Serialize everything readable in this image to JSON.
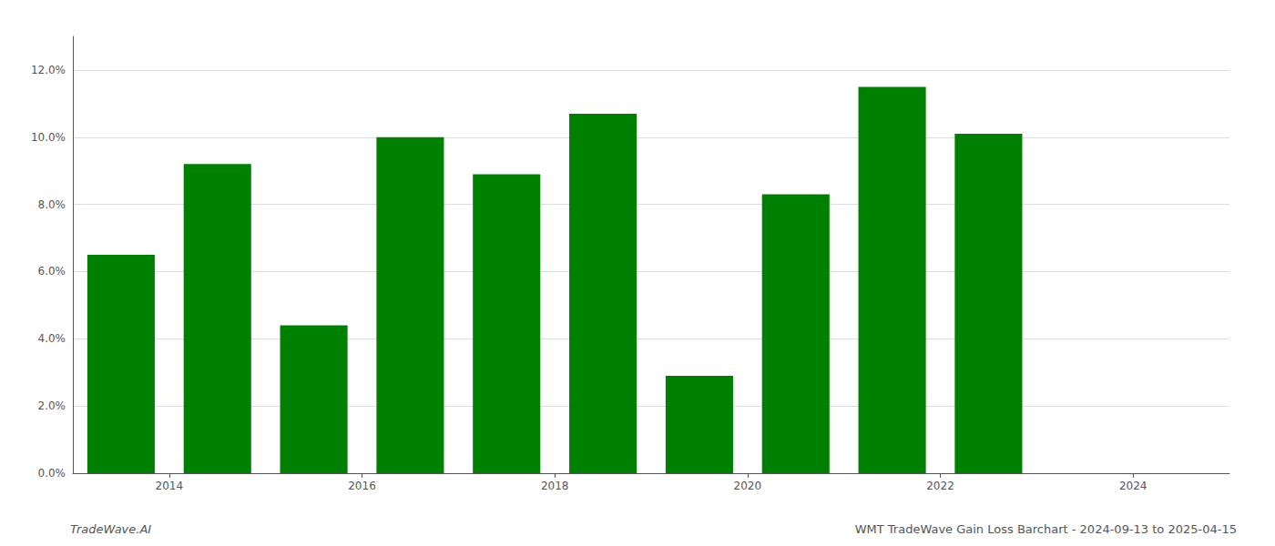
{
  "chart_data": {
    "type": "bar",
    "x": [
      2013,
      2014,
      2015,
      2016,
      2017,
      2018,
      2019,
      2020,
      2021,
      2022
    ],
    "values": [
      0.065,
      0.092,
      0.044,
      0.1,
      0.089,
      0.107,
      0.029,
      0.083,
      0.115,
      0.101
    ],
    "color": "#008000",
    "xlim": [
      2012.5,
      2024.5
    ],
    "xticks": [
      {
        "value": 2013.5,
        "label": "2014"
      },
      {
        "value": 2015.5,
        "label": "2016"
      },
      {
        "value": 2017.5,
        "label": "2018"
      },
      {
        "value": 2019.5,
        "label": "2020"
      },
      {
        "value": 2021.5,
        "label": "2022"
      },
      {
        "value": 2023.5,
        "label": "2024"
      }
    ],
    "ylim": [
      0,
      0.13
    ],
    "yticks": [
      {
        "value": 0.0,
        "label": "0.0%"
      },
      {
        "value": 0.02,
        "label": "2.0%"
      },
      {
        "value": 0.04,
        "label": "4.0%"
      },
      {
        "value": 0.06,
        "label": "6.0%"
      },
      {
        "value": 0.08,
        "label": "8.0%"
      },
      {
        "value": 0.1,
        "label": "10.0%"
      },
      {
        "value": 0.12,
        "label": "12.0%"
      }
    ],
    "grid": true,
    "annotations": [
      "TradeWave.AI",
      "WMT TradeWave Gain Loss Barchart - 2024-09-13 to 2025-04-15"
    ]
  }
}
